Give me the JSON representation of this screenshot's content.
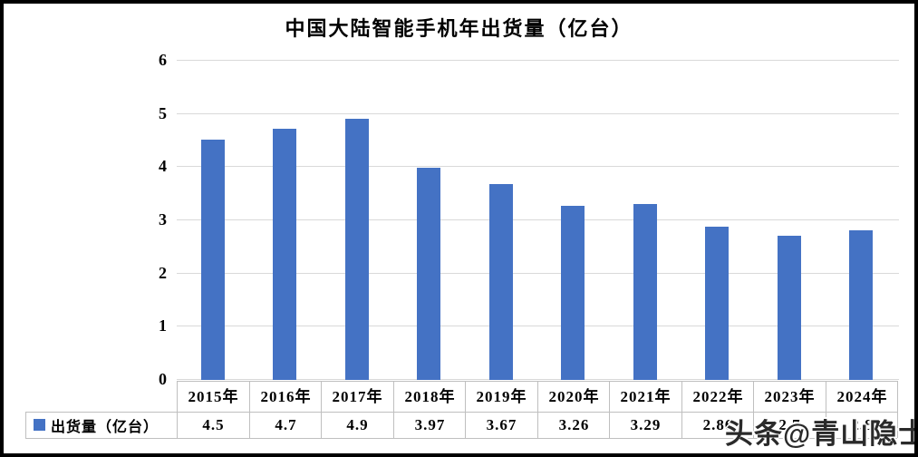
{
  "page": {
    "watermark": "头条@青山隐士"
  },
  "chart_data": {
    "type": "bar",
    "title": "中国大陆智能手机年出货量（亿台）",
    "categories": [
      "2015年",
      "2016年",
      "2017年",
      "2018年",
      "2019年",
      "2020年",
      "2021年",
      "2022年",
      "2023年",
      "2024年"
    ],
    "series": [
      {
        "name": "出货量（亿台）",
        "values": [
          4.5,
          4.7,
          4.9,
          3.97,
          3.67,
          3.26,
          3.29,
          2.86,
          2.7,
          2.8
        ]
      }
    ],
    "value_labels": [
      "4.5",
      "4.7",
      "4.9",
      "3.97",
      "3.67",
      "3.26",
      "3.29",
      "2.86",
      "2.7",
      "2.8"
    ],
    "legend_label": "出货量（亿台）",
    "legend_position": "bottom-left-of-data-table",
    "xlabel": "",
    "ylabel": "",
    "ylim": [
      0,
      6
    ],
    "yticks": [
      "0",
      "1",
      "2",
      "3",
      "4",
      "5",
      "6"
    ],
    "grid": true,
    "bar_color": "#4472C4",
    "gridline_color": "#D9D9D9",
    "table_border_color": "#BFBFBF",
    "data_table_shown": true
  }
}
